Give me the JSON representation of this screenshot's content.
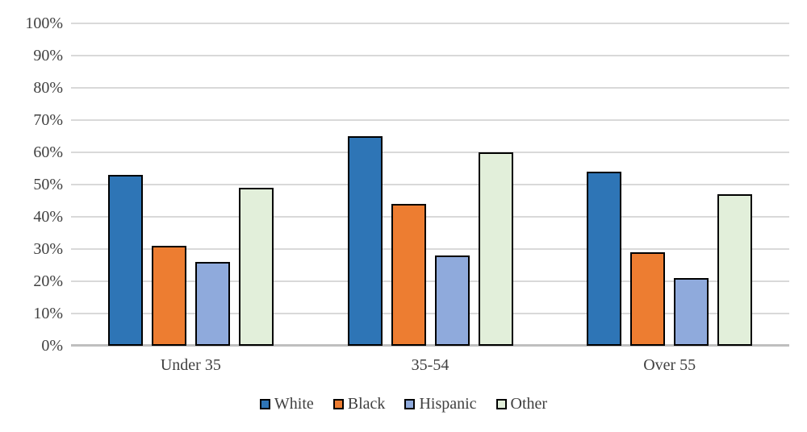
{
  "chart_data": {
    "type": "bar",
    "title": "",
    "xlabel": "",
    "ylabel": "",
    "categories": [
      "Under 35",
      "35-54",
      "Over 55"
    ],
    "series": [
      {
        "name": "White",
        "color": "#2E75B6",
        "values": [
          53,
          65,
          54
        ]
      },
      {
        "name": "Black",
        "color": "#ED7D31",
        "values": [
          31,
          44,
          29
        ]
      },
      {
        "name": "Hispanic",
        "color": "#8FAADC",
        "values": [
          26,
          28,
          21
        ]
      },
      {
        "name": "Other",
        "color": "#E2EFDA",
        "values": [
          49,
          60,
          47
        ]
      }
    ],
    "ylim": [
      0,
      100
    ],
    "yticks": [
      0,
      10,
      20,
      30,
      40,
      50,
      60,
      70,
      80,
      90,
      100
    ],
    "ytick_labels": [
      "0%",
      "10%",
      "20%",
      "30%",
      "40%",
      "50%",
      "60%",
      "70%",
      "80%",
      "90%",
      "100%"
    ],
    "grid": true,
    "legend_position": "bottom",
    "colors": {
      "bar_border": "#000000",
      "gridline": "#D9D9D9",
      "axis_line": "#BFBFBF",
      "text": "#404040",
      "background": "#FFFFFF"
    }
  }
}
